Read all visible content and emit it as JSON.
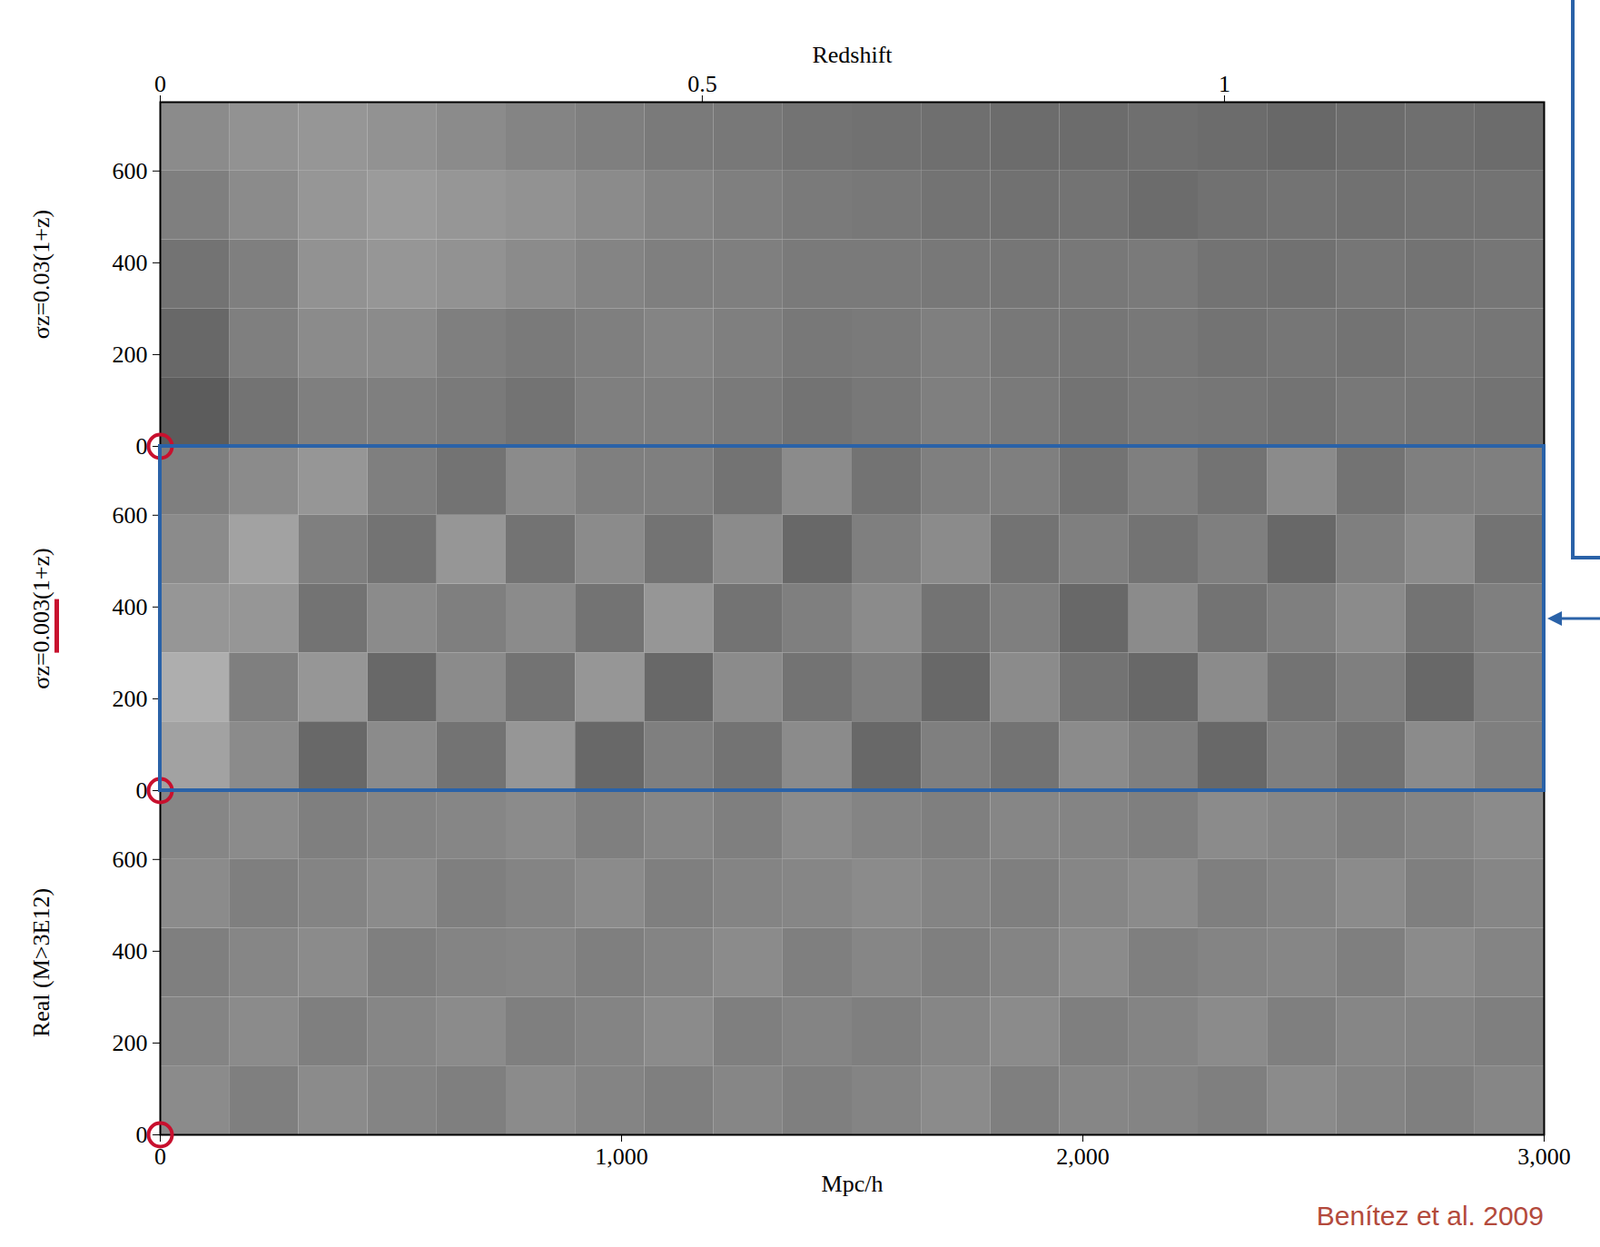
{
  "chart_data": [
    {
      "type": "heatmap",
      "ylabel": "σz=0.03(1+z)",
      "xlim": [
        0,
        3000
      ],
      "ylim": [
        0,
        750
      ],
      "yticks": [
        0,
        200,
        400,
        600
      ],
      "tick_labels": "y",
      "top_axis": {
        "label": "Redshift",
        "ticks": [
          0,
          0.5,
          1
        ],
        "positions": [
          0,
          1175,
          2307
        ]
      },
      "cell_range": [
        0,
        1
      ],
      "cells": [
        [
          0.35,
          0.45,
          0.5,
          0.5,
          0.48,
          0.45,
          0.5,
          0.5,
          0.48,
          0.45,
          0.47,
          0.5,
          0.48,
          0.45,
          0.47,
          0.46,
          0.45,
          0.47,
          0.46,
          0.45
        ],
        [
          0.4,
          0.5,
          0.55,
          0.55,
          0.5,
          0.48,
          0.5,
          0.52,
          0.5,
          0.47,
          0.48,
          0.5,
          0.47,
          0.46,
          0.47,
          0.45,
          0.46,
          0.45,
          0.47,
          0.46
        ],
        [
          0.45,
          0.5,
          0.58,
          0.6,
          0.58,
          0.55,
          0.52,
          0.5,
          0.5,
          0.48,
          0.48,
          0.47,
          0.46,
          0.47,
          0.48,
          0.45,
          0.44,
          0.46,
          0.45,
          0.46
        ],
        [
          0.5,
          0.55,
          0.6,
          0.62,
          0.6,
          0.58,
          0.55,
          0.52,
          0.5,
          0.48,
          0.47,
          0.45,
          0.44,
          0.45,
          0.42,
          0.44,
          0.45,
          0.44,
          0.45,
          0.45
        ],
        [
          0.55,
          0.58,
          0.6,
          0.58,
          0.55,
          0.52,
          0.5,
          0.48,
          0.47,
          0.45,
          0.44,
          0.43,
          0.42,
          0.42,
          0.43,
          0.42,
          0.4,
          0.42,
          0.43,
          0.42
        ]
      ]
    },
    {
      "type": "heatmap",
      "ylabel": "σz=0.003(1+z)",
      "underline": "0.003",
      "xlim": [
        0,
        3000
      ],
      "ylim": [
        0,
        750
      ],
      "yticks": [
        0,
        200,
        400,
        600
      ],
      "tick_labels": "y",
      "cell_range": [
        0,
        1
      ],
      "cells": [
        [
          0.65,
          0.55,
          0.4,
          0.55,
          0.45,
          0.6,
          0.4,
          0.5,
          0.45,
          0.55,
          0.4,
          0.5,
          0.45,
          0.55,
          0.5,
          0.4,
          0.5,
          0.45,
          0.55,
          0.5
        ],
        [
          0.7,
          0.5,
          0.6,
          0.4,
          0.55,
          0.45,
          0.6,
          0.4,
          0.55,
          0.45,
          0.5,
          0.4,
          0.55,
          0.45,
          0.4,
          0.55,
          0.45,
          0.5,
          0.4,
          0.5
        ],
        [
          0.6,
          0.6,
          0.45,
          0.55,
          0.5,
          0.55,
          0.45,
          0.6,
          0.45,
          0.5,
          0.55,
          0.45,
          0.5,
          0.4,
          0.55,
          0.45,
          0.5,
          0.55,
          0.45,
          0.5
        ],
        [
          0.55,
          0.65,
          0.5,
          0.45,
          0.6,
          0.45,
          0.55,
          0.45,
          0.55,
          0.4,
          0.5,
          0.55,
          0.45,
          0.5,
          0.45,
          0.5,
          0.4,
          0.5,
          0.55,
          0.45
        ],
        [
          0.5,
          0.55,
          0.6,
          0.5,
          0.45,
          0.55,
          0.5,
          0.5,
          0.45,
          0.55,
          0.45,
          0.5,
          0.5,
          0.45,
          0.5,
          0.45,
          0.55,
          0.45,
          0.5,
          0.5
        ]
      ]
    },
    {
      "type": "heatmap",
      "ylabel": "Real (M>3E12)",
      "xlabel": "Mpc/h",
      "xlim": [
        0,
        3000
      ],
      "ylim": [
        0,
        750
      ],
      "xticks": [
        0,
        1000,
        2000,
        3000
      ],
      "yticks": [
        0,
        200,
        400,
        600
      ],
      "tick_labels": true,
      "cell_range": [
        0,
        1
      ],
      "cells": [
        [
          0.55,
          0.5,
          0.55,
          0.52,
          0.5,
          0.55,
          0.52,
          0.5,
          0.53,
          0.5,
          0.52,
          0.55,
          0.5,
          0.53,
          0.52,
          0.5,
          0.55,
          0.52,
          0.5,
          0.53
        ],
        [
          0.52,
          0.55,
          0.5,
          0.53,
          0.55,
          0.5,
          0.52,
          0.55,
          0.5,
          0.52,
          0.5,
          0.53,
          0.55,
          0.5,
          0.52,
          0.55,
          0.5,
          0.53,
          0.52,
          0.5
        ],
        [
          0.5,
          0.53,
          0.55,
          0.5,
          0.52,
          0.53,
          0.5,
          0.52,
          0.55,
          0.5,
          0.53,
          0.5,
          0.52,
          0.55,
          0.5,
          0.52,
          0.53,
          0.5,
          0.55,
          0.52
        ],
        [
          0.55,
          0.5,
          0.52,
          0.55,
          0.5,
          0.52,
          0.55,
          0.5,
          0.52,
          0.53,
          0.55,
          0.52,
          0.5,
          0.53,
          0.55,
          0.5,
          0.52,
          0.55,
          0.5,
          0.53
        ],
        [
          0.53,
          0.55,
          0.5,
          0.52,
          0.53,
          0.55,
          0.5,
          0.53,
          0.5,
          0.55,
          0.52,
          0.5,
          0.53,
          0.52,
          0.5,
          0.55,
          0.53,
          0.5,
          0.52,
          0.55
        ]
      ]
    }
  ],
  "source": "Benítez et al. 2009"
}
